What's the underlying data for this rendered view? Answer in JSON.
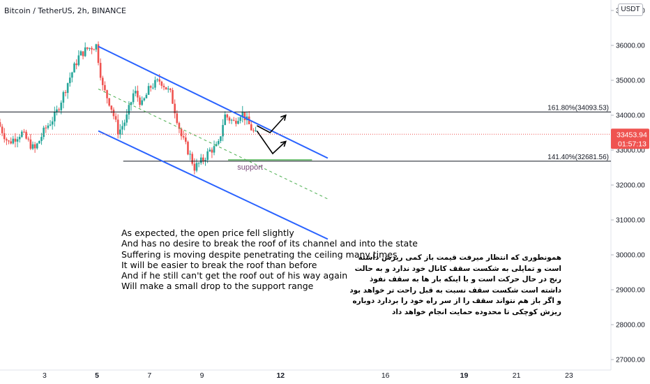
{
  "header": {
    "symbol_title": "Bitcoin / TetherUS, 2h, BINANCE",
    "currency_badge": "USDT"
  },
  "colors": {
    "up": "#26a69a",
    "down": "#ef5350",
    "channel": "#2962ff",
    "midline": "#4caf50",
    "support": "#4caf50",
    "fib": "#131722",
    "price_label": "#ef5350"
  },
  "chart_data": {
    "type": "candlestick",
    "symbol": "Bitcoin / TetherUS",
    "interval": "2h",
    "exchange": "BINANCE",
    "y_axis_ticks": [
      "27000.00",
      "28000.00",
      "29000.00",
      "30000.00",
      "31000.00",
      "32000.00",
      "33000.00",
      "34000.00",
      "35000.00",
      "36000.00",
      "37000.00"
    ],
    "ylim": [
      26700,
      37300
    ],
    "x_axis_ticks": [
      {
        "label": "3",
        "day": 3,
        "bold": false
      },
      {
        "label": "5",
        "day": 5,
        "bold": true
      },
      {
        "label": "7",
        "day": 7,
        "bold": false
      },
      {
        "label": "9",
        "day": 9,
        "bold": false
      },
      {
        "label": "12",
        "day": 12,
        "bold": true
      },
      {
        "label": "16",
        "day": 16,
        "bold": false
      },
      {
        "label": "19",
        "day": 19,
        "bold": true
      },
      {
        "label": "21",
        "day": 21,
        "bold": false
      },
      {
        "label": "23",
        "day": 23,
        "bold": false
      }
    ],
    "xlim": [
      1.3,
      24.6
    ],
    "price_path": [
      [
        1.3,
        33800
      ],
      [
        1.7,
        33200
      ],
      [
        2.2,
        33500
      ],
      [
        2.7,
        33000
      ],
      [
        3.1,
        33600
      ],
      [
        3.5,
        34000
      ],
      [
        4.0,
        35000
      ],
      [
        4.4,
        35700
      ],
      [
        4.7,
        35900
      ],
      [
        5.05,
        36000
      ],
      [
        5.3,
        34800
      ],
      [
        5.6,
        34300
      ],
      [
        5.9,
        33500
      ],
      [
        6.2,
        33900
      ],
      [
        6.5,
        34700
      ],
      [
        6.8,
        34300
      ],
      [
        7.1,
        34800
      ],
      [
        7.5,
        35000
      ],
      [
        7.9,
        34600
      ],
      [
        8.3,
        33400
      ],
      [
        8.6,
        32900
      ],
      [
        8.8,
        32500
      ],
      [
        9.1,
        32700
      ],
      [
        9.4,
        33000
      ],
      [
        9.7,
        33100
      ],
      [
        9.95,
        34000
      ],
      [
        10.3,
        33800
      ],
      [
        10.6,
        34100
      ],
      [
        10.9,
        33700
      ],
      [
        11.1,
        33450
      ]
    ],
    "last_price": "33453.94",
    "countdown": "01:57:13",
    "fib_levels": [
      {
        "label": "161.80%(34093.53)",
        "price": 34093.53
      },
      {
        "label": "141.40%(32681.56)",
        "price": 32681.56
      }
    ],
    "channel_upper": {
      "start": [
        5.05,
        35970
      ],
      "end": [
        13.8,
        32770
      ]
    },
    "channel_lower": {
      "start": [
        5.05,
        33550
      ],
      "end": [
        13.8,
        30450
      ]
    },
    "channel_mid": {
      "start": [
        5.05,
        34750
      ],
      "end": [
        13.8,
        31600
      ]
    },
    "support_line": {
      "start": [
        10.0,
        32720
      ],
      "end": [
        13.2,
        32720
      ]
    },
    "projection_up": [
      [
        11.1,
        33700
      ],
      [
        11.6,
        33500
      ],
      [
        12.2,
        34000
      ]
    ],
    "projection_down": [
      [
        11.1,
        33550
      ],
      [
        11.7,
        32900
      ],
      [
        12.2,
        33250
      ]
    ],
    "support_label": "support"
  },
  "notes_en": [
    "As expected, the open price fell slightly",
    "And has no desire to break the roof of its channel and into the state",
    "Suffering is moving despite penetrating the ceiling many times",
    "It will be easier to break the roof than before",
    "And if he still can't get the roof out of his way again",
    "Will make a small drop to the support range"
  ],
  "notes_fa": [
    "همونطوری که انتظار میرفت قیمت باز کمی ریزش داشته",
    "است و تمایلی به شکست سقف کانال خود ندارد و به حالت",
    "رنج در حال حرکت است و با اینکه بار ها به سقف نفوذ",
    "داشته است شکست سقف نسبت به قبل راحت تر خواهد بود",
    "و اگر باز هم نتواند سقف را از سر راه خود را بردارد دوباره",
    "ریزش کوچکی تا محدوده حمایت انجام خواهد داد"
  ]
}
